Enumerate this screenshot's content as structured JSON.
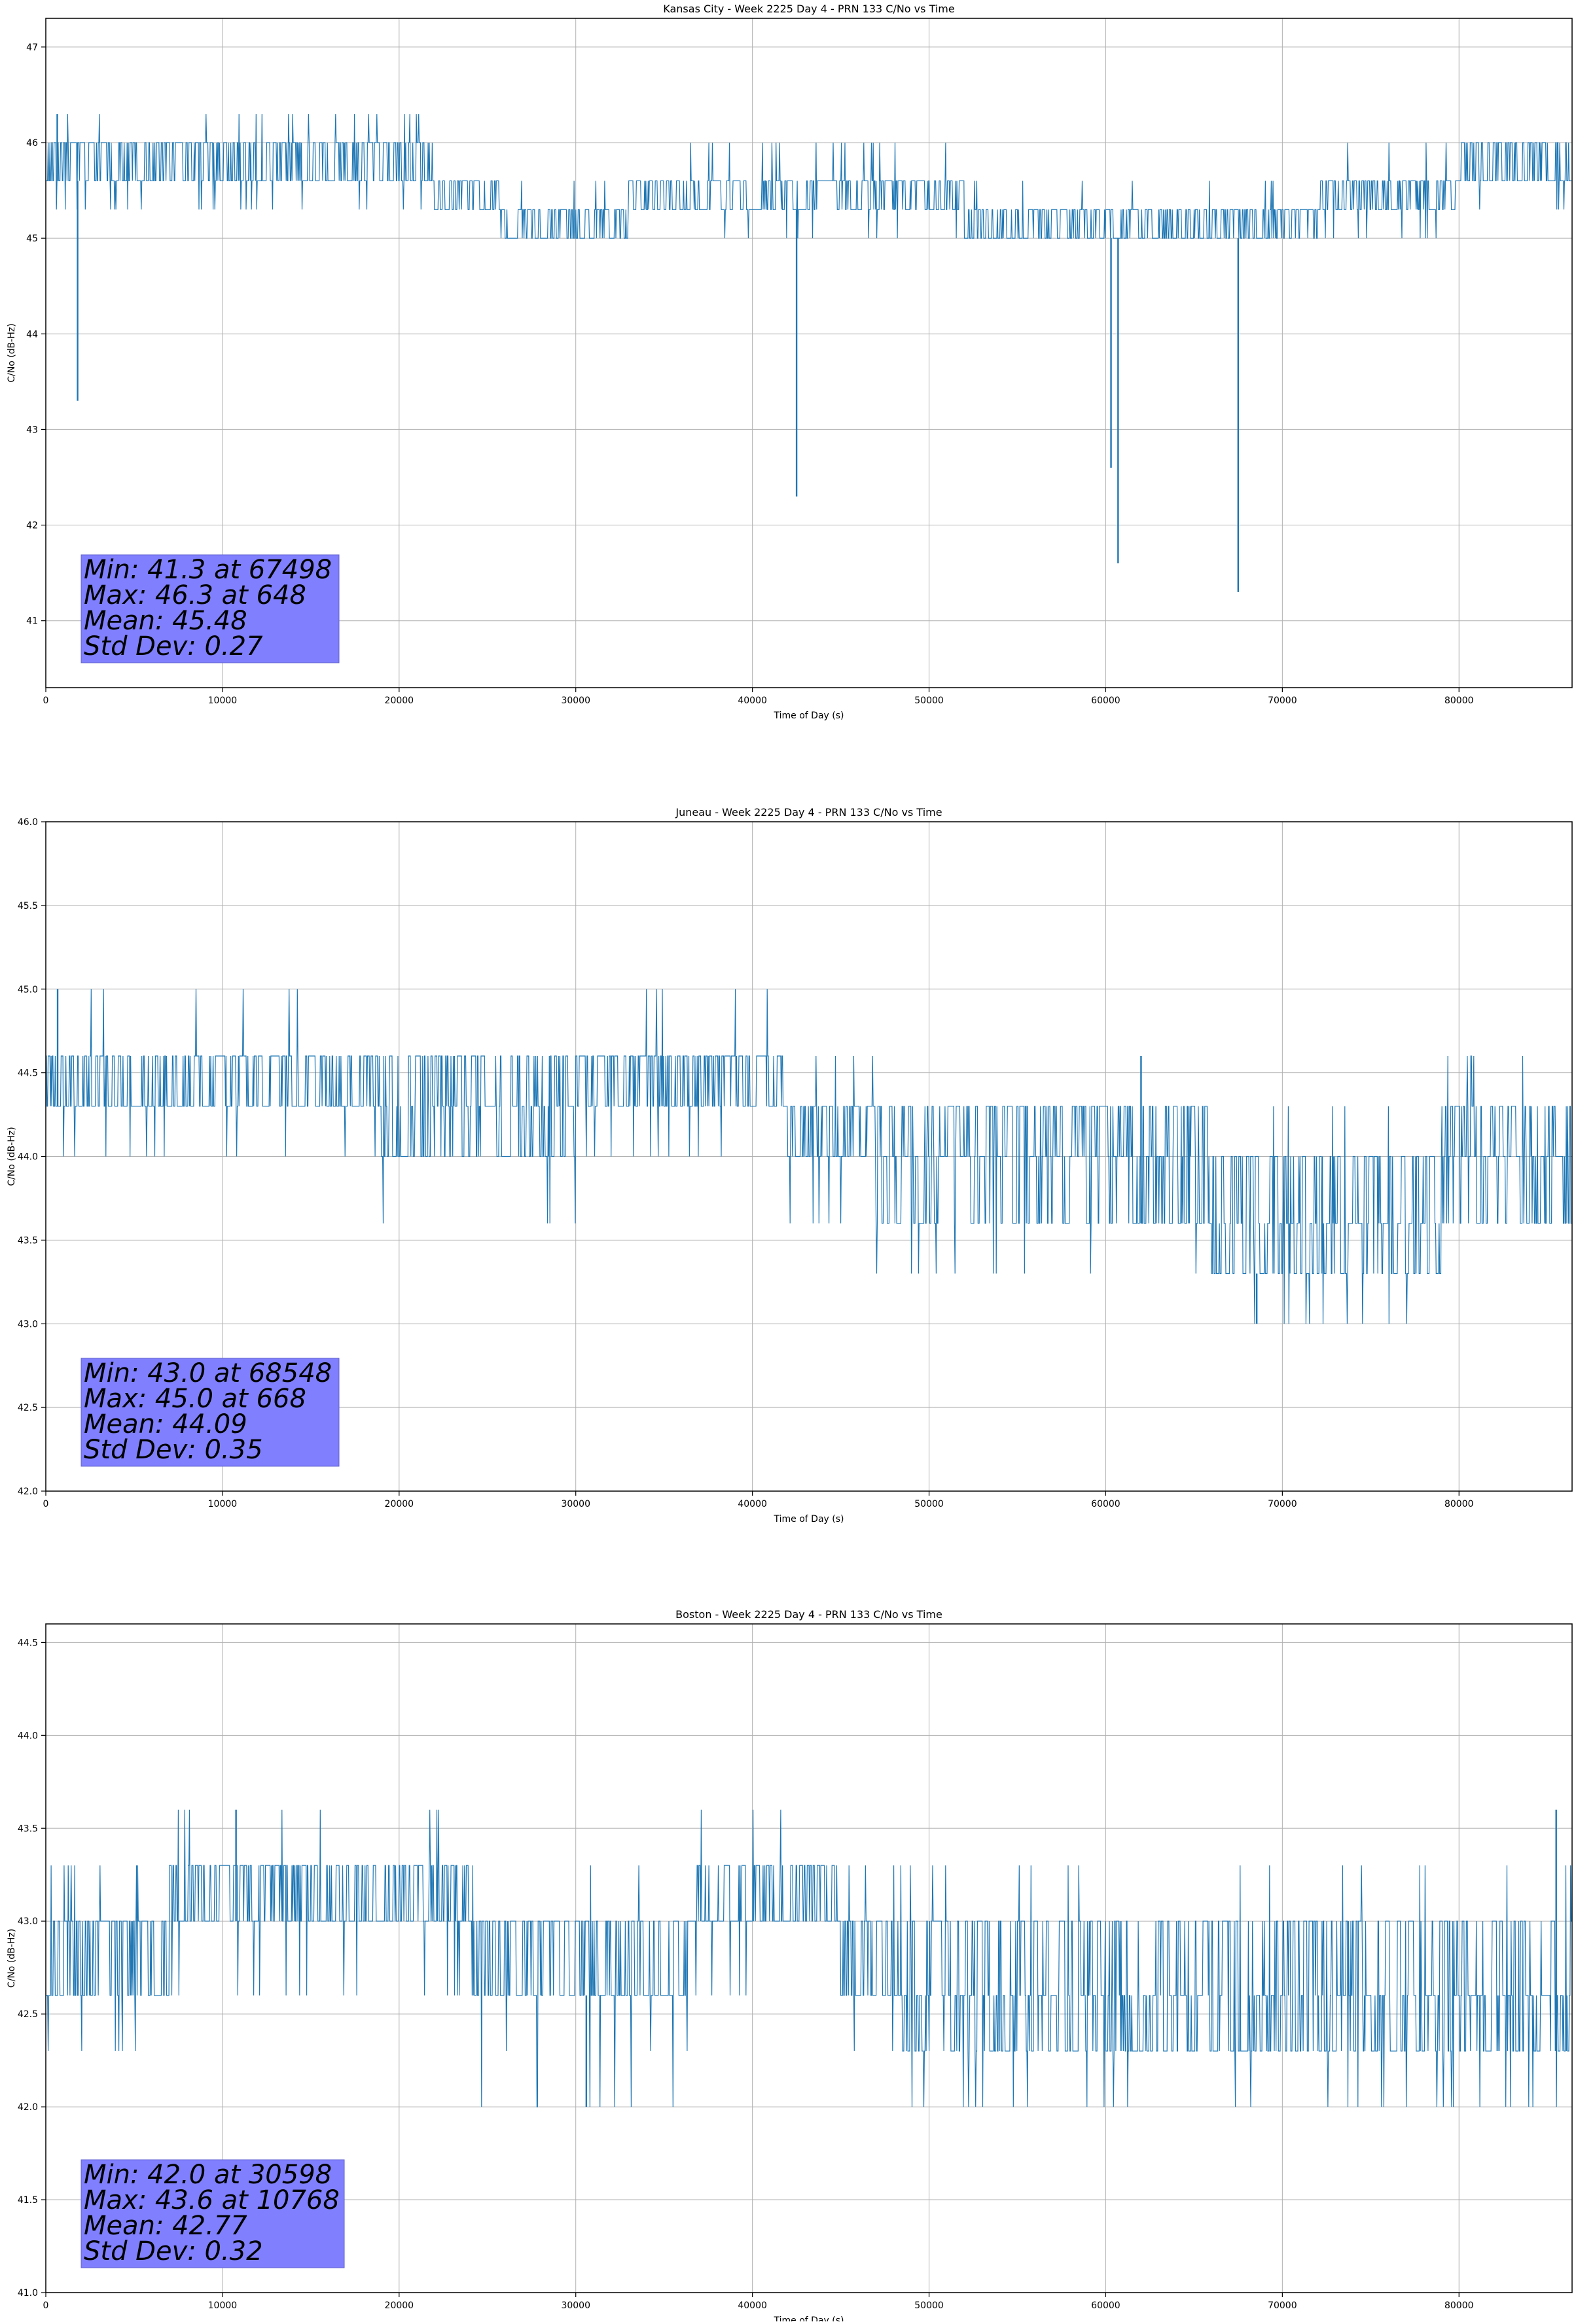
{
  "chart_data": [
    {
      "type": "line",
      "title": "Kansas City - Week 2225 Day 4 - PRN 133 C/No vs Time",
      "xlabel": "Time of Day (s)",
      "ylabel": "C/No (dB-Hz)",
      "xlim": [
        0,
        86400
      ],
      "ylim": [
        40.3,
        47.3
      ],
      "xticks": [
        0,
        10000,
        20000,
        30000,
        40000,
        50000,
        60000,
        70000,
        80000
      ],
      "yticks": [
        41,
        42,
        43,
        44,
        45,
        46,
        47
      ],
      "ytick_decimals": 0,
      "grid": true,
      "color": "#1f77b4",
      "stats": [
        "Min: 41.3 at 67498",
        "Max: 46.3 at 648",
        "Mean: 45.48",
        "Std Dev: 0.27"
      ],
      "segments": [
        {
          "x": [
            0,
            22000
          ],
          "levels": [
            45.6,
            46.0
          ],
          "rate": 0.5,
          "lowSpikes": [
            45.3
          ],
          "highSpikes": [
            46.3
          ]
        },
        {
          "x": [
            22000,
            26000
          ],
          "levels": [
            45.3,
            45.6
          ],
          "rate": 0.5,
          "lowSpikes": [
            45.0
          ],
          "highSpikes": [
            46.0
          ]
        },
        {
          "x": [
            26000,
            33000
          ],
          "levels": [
            45.0,
            45.3
          ],
          "rate": 0.5,
          "lowSpikes": [],
          "highSpikes": [
            45.6
          ]
        },
        {
          "x": [
            33000,
            52000
          ],
          "levels": [
            45.3,
            45.6
          ],
          "rate": 0.5,
          "lowSpikes": [
            45.0
          ],
          "highSpikes": [
            46.0
          ]
        },
        {
          "x": [
            52000,
            72000
          ],
          "levels": [
            45.0,
            45.3
          ],
          "rate": 0.5,
          "lowSpikes": [],
          "highSpikes": [
            45.6
          ]
        },
        {
          "x": [
            72000,
            80000
          ],
          "levels": [
            45.3,
            45.6
          ],
          "rate": 0.5,
          "lowSpikes": [
            45.0
          ],
          "highSpikes": [
            46.0
          ]
        },
        {
          "x": [
            80000,
            86400
          ],
          "levels": [
            45.6,
            46.0
          ],
          "rate": 0.5,
          "lowSpikes": [
            45.3
          ],
          "highSpikes": []
        }
      ],
      "dips": [
        {
          "x": 648,
          "y": 46.3
        },
        {
          "x": 1800,
          "y": 43.3
        },
        {
          "x": 42500,
          "y": 42.3
        },
        {
          "x": 60300,
          "y": 42.6
        },
        {
          "x": 60700,
          "y": 41.6
        },
        {
          "x": 67498,
          "y": 41.3
        }
      ]
    },
    {
      "type": "line",
      "title": "Juneau - Week 2225 Day 4 - PRN 133 C/No vs Time",
      "xlabel": "Time of Day (s)",
      "ylabel": "C/No (dB-Hz)",
      "xlim": [
        0,
        86400
      ],
      "ylim": [
        42.0,
        46.0
      ],
      "xticks": [
        0,
        10000,
        20000,
        30000,
        40000,
        50000,
        60000,
        70000,
        80000
      ],
      "yticks": [
        42.0,
        42.5,
        43.0,
        43.5,
        44.0,
        44.5,
        45.0,
        45.5,
        46.0
      ],
      "ytick_decimals": 1,
      "grid": true,
      "color": "#1f77b4",
      "stats": [
        "Min: 43.0 at 68548",
        "Max: 45.0 at 668",
        "Mean: 44.09",
        "Std Dev: 0.35"
      ],
      "segments": [
        {
          "x": [
            0,
            19000
          ],
          "levels": [
            44.3,
            44.6
          ],
          "rate": 0.5,
          "lowSpikes": [
            44.0
          ],
          "highSpikes": [
            45.0
          ]
        },
        {
          "x": [
            19000,
            30000
          ],
          "levels": [
            44.0,
            44.3,
            44.6
          ],
          "rate": 0.5,
          "lowSpikes": [
            43.6
          ],
          "highSpikes": []
        },
        {
          "x": [
            30000,
            42000
          ],
          "levels": [
            44.3,
            44.6
          ],
          "rate": 0.5,
          "lowSpikes": [
            44.0
          ],
          "highSpikes": [
            45.0
          ]
        },
        {
          "x": [
            42000,
            47000
          ],
          "levels": [
            44.0,
            44.3
          ],
          "rate": 0.5,
          "lowSpikes": [
            43.6
          ],
          "highSpikes": [
            44.6
          ]
        },
        {
          "x": [
            47000,
            66000
          ],
          "levels": [
            43.6,
            44.0,
            44.3
          ],
          "rate": 0.5,
          "lowSpikes": [
            43.3
          ],
          "highSpikes": []
        },
        {
          "x": [
            66000,
            79000
          ],
          "levels": [
            43.3,
            43.6,
            44.0
          ],
          "rate": 0.5,
          "lowSpikes": [
            43.0
          ],
          "highSpikes": [
            44.3
          ]
        },
        {
          "x": [
            79000,
            86400
          ],
          "levels": [
            43.6,
            44.0,
            44.3
          ],
          "rate": 0.5,
          "lowSpikes": [],
          "highSpikes": [
            44.6
          ]
        }
      ],
      "dips": [
        {
          "x": 668,
          "y": 45.0
        },
        {
          "x": 68548,
          "y": 43.0
        },
        {
          "x": 62000,
          "y": 44.6
        }
      ]
    },
    {
      "type": "line",
      "title": "Boston - Week 2225 Day 4 - PRN 133 C/No vs Time",
      "xlabel": "Time of Day (s)",
      "ylabel": "C/No (dB-Hz)",
      "xlim": [
        0,
        86400
      ],
      "ylim": [
        41.0,
        44.6
      ],
      "xticks": [
        0,
        10000,
        20000,
        30000,
        40000,
        50000,
        60000,
        70000,
        80000
      ],
      "yticks": [
        41.0,
        41.5,
        42.0,
        42.5,
        43.0,
        43.5,
        44.0,
        44.5
      ],
      "ytick_decimals": 1,
      "grid": true,
      "color": "#1f77b4",
      "stats": [
        "Min: 42.0 at 30598",
        "Max: 43.6 at 10768",
        "Mean: 42.77",
        "Std Dev: 0.32"
      ],
      "segments": [
        {
          "x": [
            0,
            7000
          ],
          "levels": [
            42.6,
            43.0
          ],
          "rate": 0.5,
          "lowSpikes": [
            42.3
          ],
          "highSpikes": [
            43.3
          ]
        },
        {
          "x": [
            7000,
            24000
          ],
          "levels": [
            43.0,
            43.3
          ],
          "rate": 0.5,
          "lowSpikes": [
            42.6
          ],
          "highSpikes": [
            43.6
          ]
        },
        {
          "x": [
            24000,
            36500
          ],
          "levels": [
            42.6,
            43.0
          ],
          "rate": 0.5,
          "lowSpikes": [
            42.3,
            42.0
          ],
          "highSpikes": [
            43.3
          ]
        },
        {
          "x": [
            36500,
            45000
          ],
          "levels": [
            43.0,
            43.3
          ],
          "rate": 0.5,
          "lowSpikes": [
            42.6
          ],
          "highSpikes": [
            43.6
          ]
        },
        {
          "x": [
            45000,
            48500
          ],
          "levels": [
            42.6,
            43.0
          ],
          "rate": 0.5,
          "lowSpikes": [
            42.3
          ],
          "highSpikes": [
            43.3
          ]
        },
        {
          "x": [
            48500,
            86400
          ],
          "levels": [
            42.3,
            42.6,
            43.0
          ],
          "rate": 0.5,
          "lowSpikes": [
            42.0
          ],
          "highSpikes": [
            43.3
          ]
        }
      ],
      "dips": [
        {
          "x": 10768,
          "y": 43.6
        },
        {
          "x": 30598,
          "y": 42.0
        },
        {
          "x": 85500,
          "y": 43.6
        }
      ]
    }
  ]
}
